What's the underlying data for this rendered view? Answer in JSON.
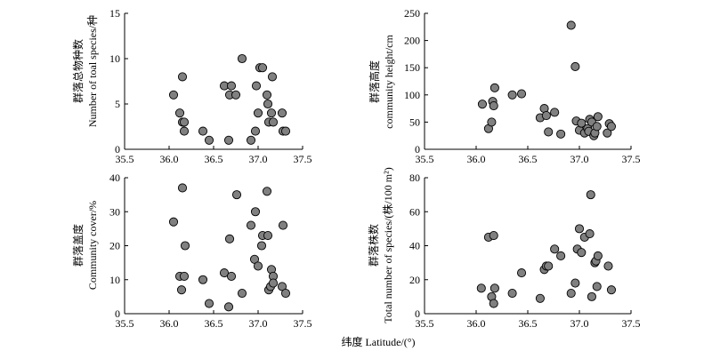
{
  "figure": {
    "shared_xlabel": "纬度 Latitude/(°)",
    "marker_color": "#808080"
  },
  "chart_data": [
    {
      "type": "scatter",
      "ylabel_line1": "群落总物种数",
      "ylabel_line2": "Number of toal species/种",
      "xlim": [
        35.5,
        37.5
      ],
      "ylim": [
        0,
        15
      ],
      "xticks": [
        "35.5",
        "36.0",
        "36.5",
        "37.0",
        "37.5"
      ],
      "yticks": [
        "0",
        "5",
        "10",
        "15"
      ],
      "x": [
        36.05,
        36.12,
        36.15,
        36.17,
        36.17,
        36.15,
        36.38,
        36.45,
        36.62,
        36.67,
        36.68,
        36.7,
        36.75,
        36.82,
        36.92,
        36.97,
        36.98,
        37.0,
        37.02,
        37.05,
        37.1,
        37.11,
        37.12,
        37.15,
        37.16,
        37.17,
        37.27,
        37.28,
        37.31
      ],
      "y": [
        6,
        4,
        3,
        3,
        2,
        8,
        2,
        1,
        7,
        1,
        6,
        7,
        6,
        10,
        1,
        2,
        7,
        4,
        9,
        9,
        6,
        5,
        3,
        4,
        8,
        3,
        4,
        2,
        2
      ]
    },
    {
      "type": "scatter",
      "ylabel_line1": "群落高度",
      "ylabel_line2": "community height/cm",
      "xlim": [
        35.5,
        37.5
      ],
      "ylim": [
        0,
        250
      ],
      "xticks": [
        "35.5",
        "36.0",
        "36.5",
        "37.0",
        "37.5"
      ],
      "yticks": [
        "0",
        "50",
        "100",
        "150",
        "200",
        "250"
      ],
      "x": [
        36.06,
        36.12,
        36.15,
        36.16,
        36.17,
        36.18,
        36.35,
        36.44,
        36.62,
        36.66,
        36.68,
        36.7,
        36.76,
        36.82,
        36.92,
        36.96,
        36.97,
        37.0,
        37.02,
        37.05,
        37.08,
        37.09,
        37.1,
        37.12,
        37.14,
        37.15,
        37.17,
        37.18,
        37.27,
        37.29,
        37.31
      ],
      "y": [
        83,
        38,
        50,
        88,
        80,
        113,
        100,
        102,
        58,
        75,
        62,
        32,
        68,
        28,
        228,
        152,
        52,
        35,
        48,
        30,
        38,
        33,
        55,
        50,
        25,
        30,
        42,
        60,
        30,
        47,
        42
      ]
    },
    {
      "type": "scatter",
      "ylabel_line1": "群落盖度",
      "ylabel_line2": "Community cover/%",
      "xlim": [
        35.5,
        37.5
      ],
      "ylim": [
        0,
        40
      ],
      "xticks": [
        "35.5",
        "36.0",
        "36.5",
        "37.0",
        "37.5"
      ],
      "yticks": [
        "0",
        "10",
        "20",
        "30",
        "40"
      ],
      "x": [
        36.05,
        36.12,
        36.14,
        36.15,
        36.17,
        36.18,
        36.38,
        36.45,
        36.62,
        36.67,
        36.68,
        36.7,
        36.76,
        36.82,
        36.92,
        36.96,
        36.97,
        37.0,
        37.04,
        37.05,
        37.1,
        37.11,
        37.12,
        37.14,
        37.15,
        37.17,
        37.17,
        37.27,
        37.28,
        37.31
      ],
      "y": [
        27,
        11,
        7,
        37,
        11,
        20,
        10,
        3,
        12,
        2,
        22,
        11,
        35,
        6,
        26,
        16,
        30,
        14,
        20,
        23,
        36,
        23,
        7,
        8,
        13,
        11,
        9,
        8,
        26,
        6
      ]
    },
    {
      "type": "scatter",
      "ylabel_line1": "群落株数",
      "ylabel_line2": "Total number of species/(株/100 m²)",
      "xlim": [
        35.5,
        37.5
      ],
      "ylim": [
        0,
        80
      ],
      "xticks": [
        "35.5",
        "36.0",
        "36.5",
        "37.0",
        "37.5"
      ],
      "yticks": [
        "0",
        "20",
        "40",
        "60",
        "80"
      ],
      "x": [
        36.05,
        36.12,
        36.15,
        36.17,
        36.17,
        36.18,
        36.35,
        36.44,
        36.62,
        36.66,
        36.68,
        36.7,
        36.76,
        36.82,
        36.92,
        36.96,
        36.98,
        37.0,
        37.02,
        37.05,
        37.1,
        37.11,
        37.12,
        37.15,
        37.16,
        37.17,
        37.18,
        37.28,
        37.31
      ],
      "y": [
        15,
        45,
        10,
        46,
        6,
        15,
        12,
        24,
        9,
        26,
        28,
        28,
        38,
        34,
        12,
        18,
        38,
        50,
        36,
        45,
        47,
        70,
        10,
        30,
        31,
        16,
        34,
        28,
        14
      ]
    }
  ]
}
